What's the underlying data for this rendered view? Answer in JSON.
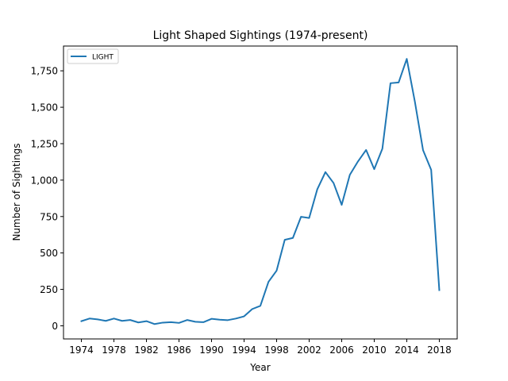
{
  "chart_data": {
    "type": "line",
    "title": "Light Shaped Sightings (1974-present)",
    "xlabel": "Year",
    "ylabel": "Number of Sightings",
    "xlim": [
      1971.8,
      2020.2
    ],
    "ylim": [
      -90,
      1920
    ],
    "x_ticks": [
      1974,
      1978,
      1982,
      1986,
      1990,
      1994,
      1998,
      2002,
      2006,
      2010,
      2014,
      2018
    ],
    "y_ticks": [
      0,
      250,
      500,
      750,
      1000,
      1250,
      1500,
      1750
    ],
    "grid": false,
    "legend_position": "upper-left",
    "series": [
      {
        "name": "LIGHT",
        "color": "#1f77b4",
        "x": [
          1974,
          1975,
          1976,
          1977,
          1978,
          1979,
          1980,
          1981,
          1982,
          1983,
          1984,
          1985,
          1986,
          1987,
          1988,
          1989,
          1990,
          1991,
          1992,
          1993,
          1994,
          1995,
          1996,
          1997,
          1998,
          1999,
          2000,
          2001,
          2002,
          2003,
          2004,
          2005,
          2006,
          2007,
          2008,
          2009,
          2010,
          2011,
          2012,
          2013,
          2014,
          2015,
          2016,
          2017,
          2018
        ],
        "y": [
          32,
          50,
          44,
          34,
          50,
          34,
          40,
          23,
          32,
          12,
          22,
          25,
          20,
          40,
          28,
          25,
          48,
          42,
          39,
          50,
          65,
          115,
          137,
          302,
          379,
          590,
          603,
          748,
          740,
          937,
          1055,
          980,
          830,
          1036,
          1128,
          1207,
          1075,
          1215,
          1665,
          1670,
          1832,
          1537,
          1206,
          1070,
          245
        ]
      }
    ]
  }
}
